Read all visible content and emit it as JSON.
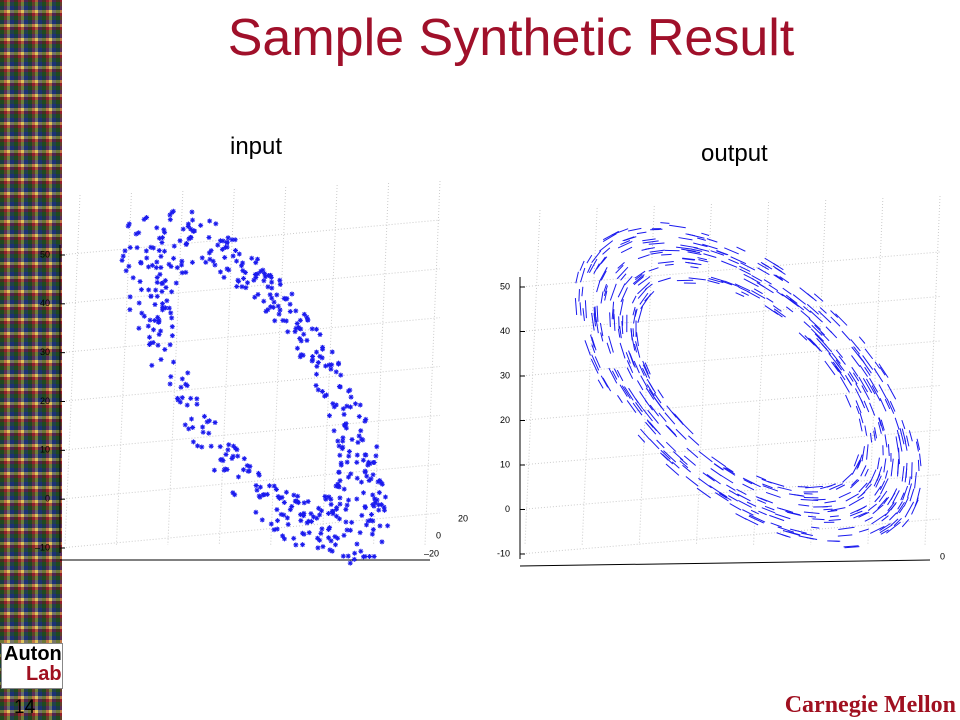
{
  "title": "Sample Synthetic Result",
  "slide_number": "14",
  "logo": {
    "line1": "Auton",
    "line2": "Lab"
  },
  "footer": "Carnegie Mellon",
  "plots": [
    {
      "label": "input",
      "zticks": [
        "50",
        "40",
        "30",
        "20",
        "10",
        "0",
        "–10"
      ],
      "yticks": [
        "20",
        "0",
        "–20"
      ]
    },
    {
      "label": "output",
      "zticks": [
        "50",
        "40",
        "30",
        "20",
        "10",
        "0",
        "-10"
      ],
      "yticks": [
        "0"
      ]
    }
  ]
}
